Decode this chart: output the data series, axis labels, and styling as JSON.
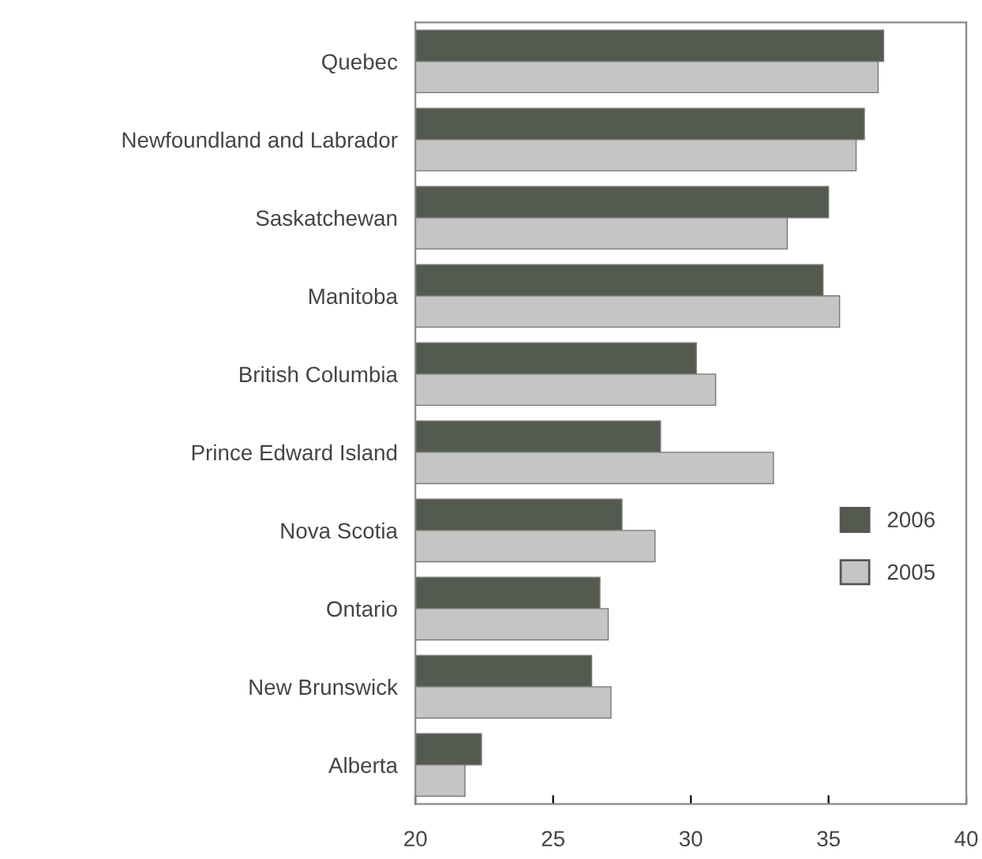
{
  "chart_data": {
    "type": "bar",
    "orientation": "horizontal",
    "categories": [
      "Quebec",
      "Newfoundland and Labrador",
      "Saskatchewan",
      "Manitoba",
      "British Columbia",
      "Prince Edward Island",
      "Nova Scotia",
      "Ontario",
      "New Brunswick",
      "Alberta"
    ],
    "series": [
      {
        "name": "2006",
        "color": "#555a50",
        "values": [
          37.0,
          36.3,
          35.0,
          34.8,
          30.2,
          28.9,
          27.5,
          26.7,
          26.4,
          22.4
        ]
      },
      {
        "name": "2005",
        "color": "#c4c6c4",
        "values": [
          36.8,
          36.0,
          33.5,
          35.4,
          30.9,
          33.0,
          28.7,
          27.0,
          27.1,
          21.8
        ]
      }
    ],
    "xlim": [
      20,
      40
    ],
    "xticks": [
      20,
      25,
      30,
      35,
      40
    ],
    "grid": false,
    "legend": "right"
  }
}
